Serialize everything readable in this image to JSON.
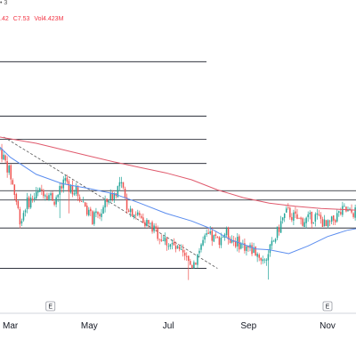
{
  "header": {
    "title_fragment": "• 3",
    "ohlc_items": [
      ".42",
      "C7.53",
      "Vol4.423M"
    ]
  },
  "colors": {
    "up": "#26a69a",
    "down": "#ef5350",
    "ma_short": "#5b8def",
    "ma_long": "#e05a6d",
    "level_line": "#131722",
    "trend_line": "#555555",
    "axis_border": "#d1d4dc"
  },
  "chart_data": {
    "type": "candlestick",
    "x_axis": {
      "ticks": [
        {
          "label": "Mar",
          "day": 0
        },
        {
          "label": "May",
          "day": 61
        },
        {
          "label": "Jul",
          "day": 122
        },
        {
          "label": "Sep",
          "day": 184
        },
        {
          "label": "Nov",
          "day": 245
        }
      ],
      "range_days": [
        -8,
        267
      ],
      "earnings_markers": [
        {
          "label": "E",
          "day": 31
        },
        {
          "label": "E",
          "day": 245
        }
      ]
    },
    "y_axis": {
      "range": [
        6.65,
        10.2
      ]
    },
    "horizontal_levels": [
      9.75,
      9.05,
      8.75,
      8.44,
      8.09,
      7.97,
      7.61,
      7.09
    ],
    "trend_line": {
      "from": {
        "day": -5,
        "value": 8.78
      },
      "to": {
        "day": 160,
        "value": 7.09
      }
    },
    "series": [
      {
        "name": "",
        "kind": "moving_average_short",
        "points": [
          [
            -8,
            8.65
          ],
          [
            0,
            8.52
          ],
          [
            20,
            8.3
          ],
          [
            40,
            8.18
          ],
          [
            60,
            8.12
          ],
          [
            80,
            8.05
          ],
          [
            100,
            7.93
          ],
          [
            120,
            7.8
          ],
          [
            140,
            7.7
          ],
          [
            155,
            7.6
          ],
          [
            170,
            7.46
          ],
          [
            190,
            7.34
          ],
          [
            200,
            7.33
          ],
          [
            215,
            7.28
          ],
          [
            230,
            7.38
          ],
          [
            245,
            7.5
          ],
          [
            260,
            7.58
          ],
          [
            267,
            7.6
          ]
        ]
      },
      {
        "name": "",
        "kind": "moving_average_long",
        "points": [
          [
            -8,
            8.78
          ],
          [
            20,
            8.7
          ],
          [
            40,
            8.62
          ],
          [
            60,
            8.54
          ],
          [
            80,
            8.46
          ],
          [
            100,
            8.39
          ],
          [
            120,
            8.32
          ],
          [
            140,
            8.23
          ],
          [
            160,
            8.1
          ],
          [
            180,
            8.0
          ],
          [
            200,
            7.93
          ],
          [
            220,
            7.89
          ],
          [
            240,
            7.86
          ],
          [
            267,
            7.84
          ]
        ]
      },
      {
        "name": "",
        "kind": "ohlc",
        "anchors": [
          [
            -8,
            8.62
          ],
          [
            0,
            8.3
          ],
          [
            4,
            8.0
          ],
          [
            8,
            7.68
          ],
          [
            12,
            7.92
          ],
          [
            18,
            8.0
          ],
          [
            25,
            8.1
          ],
          [
            34,
            7.98
          ],
          [
            42,
            8.18
          ],
          [
            50,
            8.1
          ],
          [
            58,
            7.9
          ],
          [
            63,
            7.72
          ],
          [
            70,
            7.8
          ],
          [
            76,
            8.0
          ],
          [
            80,
            8.04
          ],
          [
            85,
            8.19
          ],
          [
            90,
            7.9
          ],
          [
            96,
            7.8
          ],
          [
            103,
            7.72
          ],
          [
            110,
            7.6
          ],
          [
            117,
            7.48
          ],
          [
            124,
            7.4
          ],
          [
            130,
            7.3
          ],
          [
            136,
            7.2
          ],
          [
            140,
            7.13
          ],
          [
            143,
            7.2
          ],
          [
            148,
            7.42
          ],
          [
            153,
            7.5
          ],
          [
            160,
            7.45
          ],
          [
            166,
            7.55
          ],
          [
            172,
            7.45
          ],
          [
            178,
            7.4
          ],
          [
            184,
            7.35
          ],
          [
            190,
            7.3
          ],
          [
            195,
            7.2
          ],
          [
            199,
            7.27
          ],
          [
            205,
            7.5
          ],
          [
            210,
            7.72
          ],
          [
            214,
            7.82
          ],
          [
            218,
            7.76
          ],
          [
            224,
            7.7
          ],
          [
            230,
            7.72
          ],
          [
            236,
            7.76
          ],
          [
            240,
            7.72
          ],
          [
            244,
            7.62
          ],
          [
            248,
            7.68
          ],
          [
            253,
            7.78
          ],
          [
            258,
            7.84
          ],
          [
            262,
            7.8
          ],
          [
            267,
            7.82
          ]
        ]
      }
    ]
  }
}
